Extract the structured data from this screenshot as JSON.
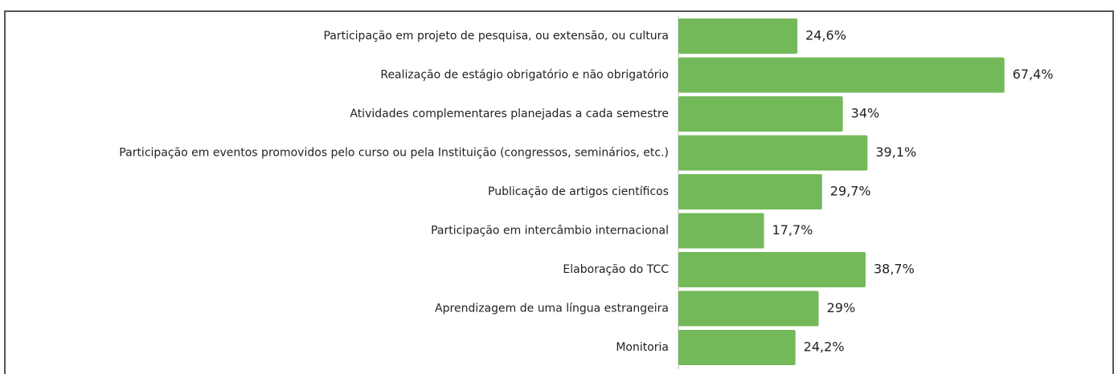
{
  "chart_data": {
    "type": "barh",
    "categories": [
      "Participação em projeto de pesquisa, ou extensão, ou cultura",
      "Realização de estágio obrigatório e não obrigatório",
      "Atividades complementares planejadas a cada semestre",
      "Participação em eventos promovidos pelo curso ou pela Instituição (congressos, seminários, etc.)",
      "Publicação de artigos científicos",
      "Participação em intercâmbio internacional",
      "Elaboração do TCC",
      "Aprendizagem de uma língua estrangeira",
      "Monitoria"
    ],
    "values": [
      24.6,
      67.4,
      34,
      39.1,
      29.7,
      17.7,
      38.7,
      29,
      24.2
    ],
    "value_labels": [
      "24,6%",
      "67,4%",
      "34%",
      "39,1%",
      "29,7%",
      "17,7%",
      "38,7%",
      "29%",
      "24,2%"
    ],
    "color": "#74b959"
  }
}
